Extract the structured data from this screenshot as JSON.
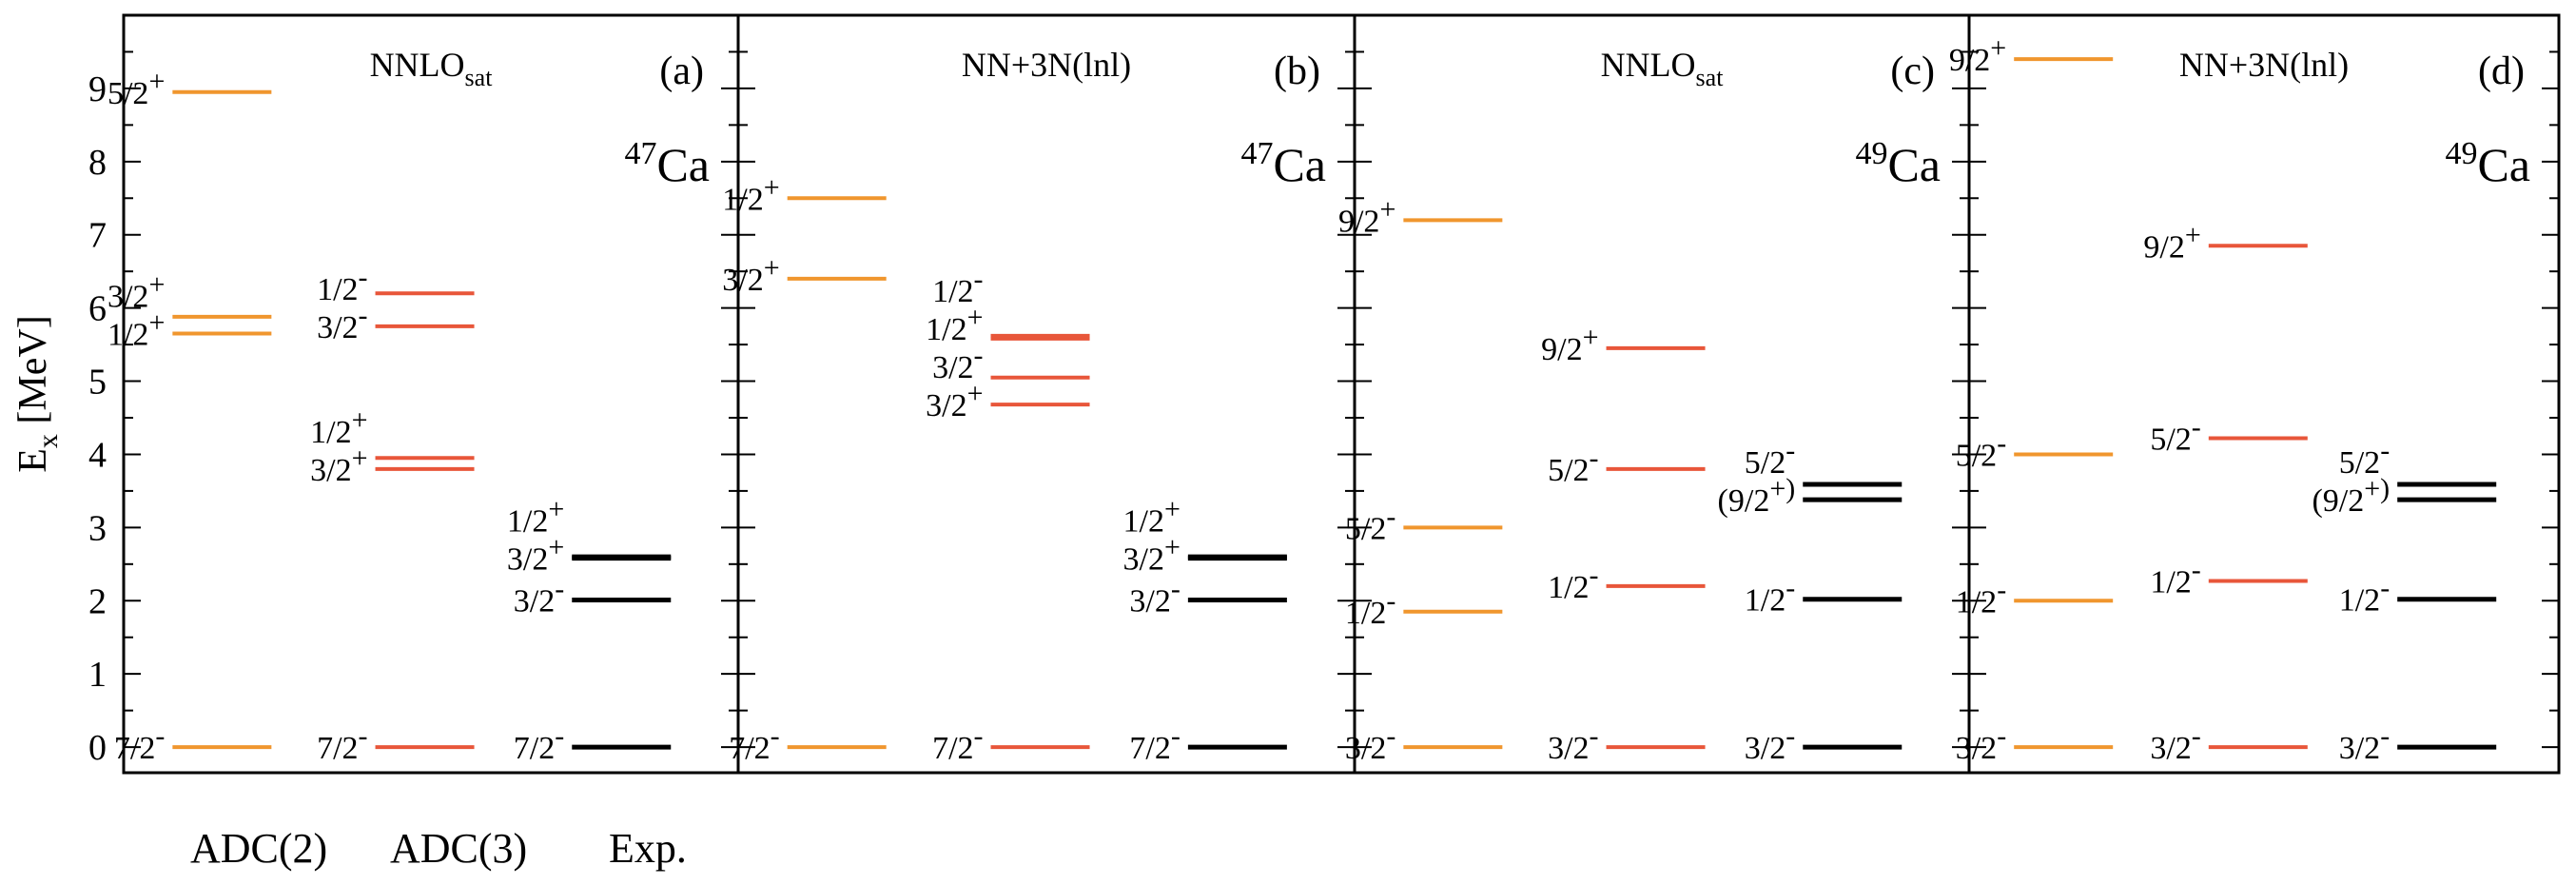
{
  "colors": {
    "adc2": "#f0962e",
    "adc3": "#e8563a",
    "exp": "#000000"
  },
  "chart_data": {
    "type": "level-scheme",
    "ylabel": {
      "base": "E",
      "sub": "x",
      "rest": " [MeV]"
    },
    "ylim": [
      -0.35,
      10.0
    ],
    "yticks": [
      0,
      1,
      2,
      3,
      4,
      5,
      6,
      7,
      8,
      9
    ],
    "legend": [
      {
        "key": "adc2",
        "label": "ADC(2)"
      },
      {
        "key": "adc3",
        "label": "ADC(3)"
      },
      {
        "key": "exp",
        "label": "Exp."
      }
    ],
    "panels": [
      {
        "tag": "(a)",
        "interaction": {
          "base": "NNLO",
          "sub": "sat"
        },
        "nucleus": {
          "mass": "47",
          "symbol": "Ca"
        },
        "columns": [
          {
            "series": "adc2",
            "levels": [
              {
                "J": "7/2",
                "parity": "-",
                "E": 0.0
              },
              {
                "J": "1/2",
                "parity": "+",
                "E": 5.65
              },
              {
                "J": "3/2",
                "parity": "+",
                "E": 5.88
              },
              {
                "J": "5/2",
                "parity": "+",
                "E": 8.95
              }
            ]
          },
          {
            "series": "adc3",
            "levels": [
              {
                "J": "7/2",
                "parity": "-",
                "E": 0.0
              },
              {
                "J": "3/2",
                "parity": "+",
                "E": 3.8
              },
              {
                "J": "1/2",
                "parity": "+",
                "E": 3.95
              },
              {
                "J": "3/2",
                "parity": "-",
                "E": 5.75
              },
              {
                "J": "1/2",
                "parity": "-",
                "E": 6.2
              }
            ]
          },
          {
            "series": "exp",
            "levels": [
              {
                "J": "7/2",
                "parity": "-",
                "E": 0.0
              },
              {
                "J": "3/2",
                "parity": "-",
                "E": 2.01
              },
              {
                "J": "3/2",
                "parity": "+",
                "E": 2.58
              },
              {
                "J": "1/2",
                "parity": "+",
                "E": 2.6
              }
            ]
          }
        ]
      },
      {
        "tag": "(b)",
        "interaction": {
          "base": "NN+3N(lnl)",
          "sub": ""
        },
        "nucleus": {
          "mass": "47",
          "symbol": "Ca"
        },
        "columns": [
          {
            "series": "adc2",
            "levels": [
              {
                "J": "7/2",
                "parity": "-",
                "E": 0.0
              },
              {
                "J": "3/2",
                "parity": "+",
                "E": 6.4
              },
              {
                "J": "1/2",
                "parity": "+",
                "E": 7.5
              }
            ]
          },
          {
            "series": "adc3",
            "levels": [
              {
                "J": "7/2",
                "parity": "-",
                "E": 0.0
              },
              {
                "J": "3/2",
                "parity": "+",
                "E": 4.68
              },
              {
                "J": "3/2",
                "parity": "-",
                "E": 5.05
              },
              {
                "J": "1/2",
                "parity": "+",
                "E": 5.58
              },
              {
                "J": "1/2",
                "parity": "-",
                "E": 5.62
              }
            ]
          },
          {
            "series": "exp",
            "levels": [
              {
                "J": "7/2",
                "parity": "-",
                "E": 0.0
              },
              {
                "J": "3/2",
                "parity": "-",
                "E": 2.01
              },
              {
                "J": "3/2",
                "parity": "+",
                "E": 2.58
              },
              {
                "J": "1/2",
                "parity": "+",
                "E": 2.6
              }
            ]
          }
        ]
      },
      {
        "tag": "(c)",
        "interaction": {
          "base": "NNLO",
          "sub": "sat"
        },
        "nucleus": {
          "mass": "49",
          "symbol": "Ca"
        },
        "columns": [
          {
            "series": "adc2",
            "levels": [
              {
                "J": "3/2",
                "parity": "-",
                "E": 0.0
              },
              {
                "J": "1/2",
                "parity": "-",
                "E": 1.85
              },
              {
                "J": "5/2",
                "parity": "-",
                "E": 3.0
              },
              {
                "J": "9/2",
                "parity": "+",
                "E": 7.2
              }
            ]
          },
          {
            "series": "adc3",
            "levels": [
              {
                "J": "3/2",
                "parity": "-",
                "E": 0.0
              },
              {
                "J": "1/2",
                "parity": "-",
                "E": 2.2
              },
              {
                "J": "5/2",
                "parity": "-",
                "E": 3.8
              },
              {
                "J": "9/2",
                "parity": "+",
                "E": 5.45
              }
            ]
          },
          {
            "series": "exp",
            "levels": [
              {
                "J": "3/2",
                "parity": "-",
                "E": 0.0
              },
              {
                "J": "1/2",
                "parity": "-",
                "E": 2.02
              },
              {
                "J": "(9/2",
                "parity": "+)",
                "E": 3.38
              },
              {
                "J": "5/2",
                "parity": "-",
                "E": 3.59
              }
            ]
          }
        ]
      },
      {
        "tag": "(d)",
        "interaction": {
          "base": "NN+3N(lnl)",
          "sub": ""
        },
        "nucleus": {
          "mass": "49",
          "symbol": "Ca"
        },
        "columns": [
          {
            "series": "adc2",
            "levels": [
              {
                "J": "3/2",
                "parity": "-",
                "E": 0.0
              },
              {
                "J": "1/2",
                "parity": "-",
                "E": 2.0
              },
              {
                "J": "5/2",
                "parity": "-",
                "E": 4.0
              },
              {
                "J": "9/2",
                "parity": "+",
                "E": 9.4
              }
            ]
          },
          {
            "series": "adc3",
            "levels": [
              {
                "J": "3/2",
                "parity": "-",
                "E": 0.0
              },
              {
                "J": "1/2",
                "parity": "-",
                "E": 2.27
              },
              {
                "J": "5/2",
                "parity": "-",
                "E": 4.22
              },
              {
                "J": "9/2",
                "parity": "+",
                "E": 6.85
              }
            ]
          },
          {
            "series": "exp",
            "levels": [
              {
                "J": "3/2",
                "parity": "-",
                "E": 0.0
              },
              {
                "J": "1/2",
                "parity": "-",
                "E": 2.02
              },
              {
                "J": "(9/2",
                "parity": "+)",
                "E": 3.38
              },
              {
                "J": "5/2",
                "parity": "-",
                "E": 3.59
              }
            ]
          }
        ]
      }
    ]
  }
}
